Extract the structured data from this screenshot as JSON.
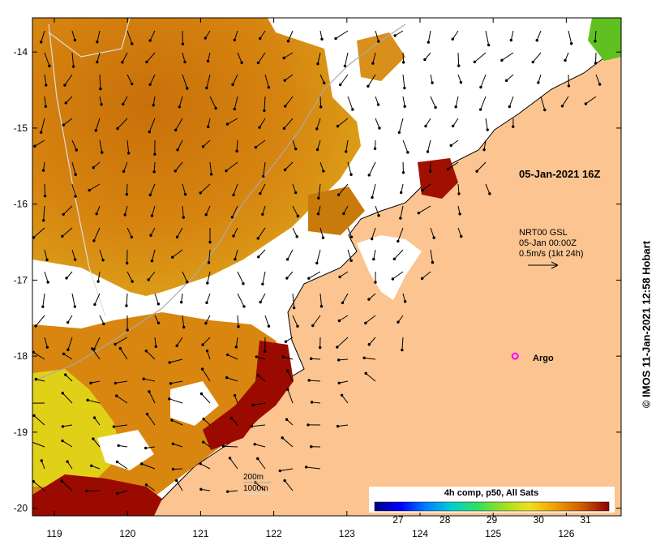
{
  "map": {
    "title_overlay": "05-Jan-2021 16Z",
    "current_info": {
      "line1": "NRT00 GSL",
      "line2": "05-Jan 00:00Z",
      "line3": "0.5m/s (1kt 24h)"
    },
    "argo_label": "Argo",
    "depth_contours": [
      "200m",
      "1000m"
    ],
    "credit": "© IMOS 11-Jan-2021 12:58 Hobart",
    "x_axis": {
      "ticks": [
        "119",
        "120",
        "121",
        "122",
        "123",
        "124",
        "125",
        "126"
      ],
      "values": [
        119,
        120,
        121,
        122,
        123,
        124,
        125,
        126
      ],
      "range": [
        118.7,
        126.75
      ]
    },
    "y_axis": {
      "ticks": [
        "-14",
        "-15",
        "-16",
        "-17",
        "-18",
        "-19",
        "-20"
      ],
      "values": [
        -14,
        -15,
        -16,
        -17,
        -18,
        -19,
        -20
      ],
      "range": [
        -20.1,
        -13.55
      ]
    },
    "argo_position": {
      "lon": 125.3,
      "lat": -18.0
    }
  },
  "colorbar": {
    "title": "4h comp, p50, All Sats",
    "ticks": [
      "27",
      "28",
      "29",
      "30",
      "31"
    ],
    "values": [
      27,
      28,
      29,
      30,
      31
    ],
    "range": [
      26.5,
      31.5
    ],
    "colors": [
      "#000080",
      "#0000ff",
      "#0080ff",
      "#00d0d0",
      "#30e060",
      "#a0e020",
      "#f0e020",
      "#f0a000",
      "#d06000",
      "#900000"
    ]
  },
  "colors": {
    "land": "#fbc490",
    "warm_sst": "#d27a0c",
    "hot_sst": "#9a0a00",
    "cool_sst": "#d4d010",
    "argo": "#ff00ff"
  }
}
